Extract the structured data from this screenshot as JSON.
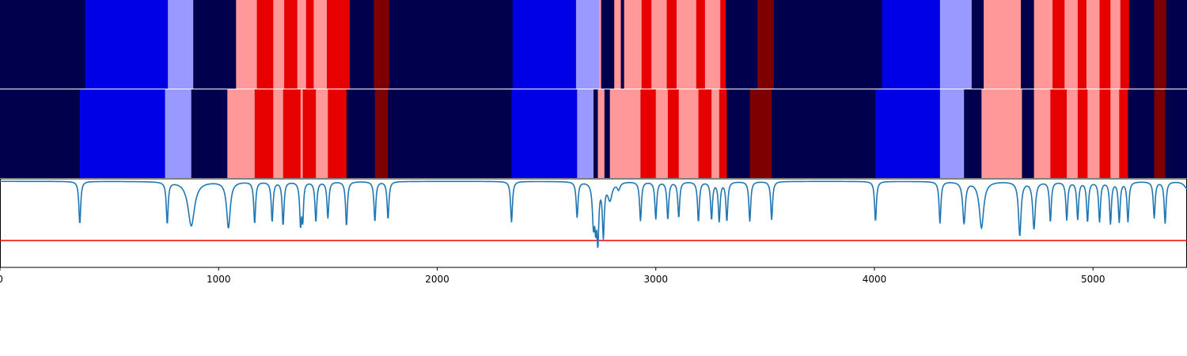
{
  "chart_data": {
    "type": "heatmap",
    "title": "",
    "xlabel": "",
    "xlim": [
      0,
      5430
    ],
    "x_ticks": [
      {
        "value": 0,
        "label": "0"
      },
      {
        "value": 1000,
        "label": "1000"
      },
      {
        "value": 2000,
        "label": "2000"
      },
      {
        "value": 3000,
        "label": "3000"
      },
      {
        "value": 4000,
        "label": "4000"
      },
      {
        "value": 5000,
        "label": "5000"
      }
    ],
    "state_colors": {
      "0": "#00004c",
      "1": "#0000e6",
      "2": "#9999ff",
      "3": "#ff9999",
      "4": "#e60000",
      "5": "#7f0000"
    },
    "bands": [
      {
        "segments": [
          [
            0,
            390,
            0
          ],
          [
            390,
            768,
            1
          ],
          [
            768,
            884,
            2
          ],
          [
            884,
            1080,
            0
          ],
          [
            1080,
            1175,
            3
          ],
          [
            1175,
            1250,
            4
          ],
          [
            1250,
            1300,
            3
          ],
          [
            1300,
            1360,
            4
          ],
          [
            1360,
            1400,
            3
          ],
          [
            1400,
            1435,
            4
          ],
          [
            1435,
            1495,
            3
          ],
          [
            1495,
            1600,
            4
          ],
          [
            1600,
            1710,
            0
          ],
          [
            1710,
            1780,
            5
          ],
          [
            1780,
            2345,
            0
          ],
          [
            2345,
            2635,
            1
          ],
          [
            2635,
            2740,
            2
          ],
          [
            2740,
            2750,
            3
          ],
          [
            2750,
            2760,
            0
          ],
          [
            2760,
            2810,
            0
          ],
          [
            2810,
            2840,
            3
          ],
          [
            2840,
            2845,
            0
          ],
          [
            2845,
            2855,
            0
          ],
          [
            2855,
            2935,
            3
          ],
          [
            2935,
            2980,
            4
          ],
          [
            2980,
            3050,
            3
          ],
          [
            3050,
            3095,
            4
          ],
          [
            3095,
            3185,
            3
          ],
          [
            3185,
            3225,
            4
          ],
          [
            3225,
            3295,
            3
          ],
          [
            3295,
            3320,
            4
          ],
          [
            3320,
            3465,
            0
          ],
          [
            3465,
            3540,
            5
          ],
          [
            3540,
            4035,
            0
          ],
          [
            4035,
            4300,
            1
          ],
          [
            4300,
            4445,
            2
          ],
          [
            4445,
            4500,
            0
          ],
          [
            4500,
            4670,
            3
          ],
          [
            4670,
            4730,
            0
          ],
          [
            4730,
            4815,
            3
          ],
          [
            4815,
            4870,
            4
          ],
          [
            4870,
            4930,
            3
          ],
          [
            4930,
            4970,
            4
          ],
          [
            4970,
            5030,
            3
          ],
          [
            5030,
            5080,
            4
          ],
          [
            5080,
            5125,
            3
          ],
          [
            5125,
            5165,
            4
          ],
          [
            5165,
            5280,
            0
          ],
          [
            5280,
            5335,
            5
          ],
          [
            5335,
            5430,
            0
          ]
        ]
      },
      {
        "segments": [
          [
            0,
            365,
            0
          ],
          [
            365,
            755,
            1
          ],
          [
            755,
            875,
            2
          ],
          [
            875,
            1040,
            0
          ],
          [
            1040,
            1165,
            3
          ],
          [
            1165,
            1250,
            4
          ],
          [
            1250,
            1295,
            3
          ],
          [
            1295,
            1375,
            4
          ],
          [
            1375,
            1385,
            3
          ],
          [
            1385,
            1445,
            4
          ],
          [
            1445,
            1500,
            3
          ],
          [
            1500,
            1585,
            4
          ],
          [
            1585,
            1715,
            0
          ],
          [
            1715,
            1775,
            5
          ],
          [
            1775,
            2340,
            0
          ],
          [
            2340,
            2640,
            1
          ],
          [
            2640,
            2715,
            2
          ],
          [
            2715,
            2735,
            0
          ],
          [
            2735,
            2765,
            3
          ],
          [
            2765,
            2790,
            0
          ],
          [
            2790,
            2930,
            3
          ],
          [
            2930,
            3000,
            4
          ],
          [
            3000,
            3055,
            3
          ],
          [
            3055,
            3105,
            4
          ],
          [
            3105,
            3195,
            3
          ],
          [
            3195,
            3255,
            4
          ],
          [
            3255,
            3290,
            3
          ],
          [
            3290,
            3325,
            4
          ],
          [
            3325,
            3430,
            0
          ],
          [
            3430,
            3530,
            5
          ],
          [
            3530,
            4005,
            0
          ],
          [
            4005,
            4300,
            1
          ],
          [
            4300,
            4410,
            2
          ],
          [
            4410,
            4490,
            0
          ],
          [
            4490,
            4675,
            3
          ],
          [
            4675,
            4730,
            0
          ],
          [
            4730,
            4805,
            3
          ],
          [
            4805,
            4880,
            4
          ],
          [
            4880,
            4930,
            3
          ],
          [
            4930,
            4975,
            4
          ],
          [
            4975,
            5030,
            3
          ],
          [
            5030,
            5080,
            4
          ],
          [
            5080,
            5120,
            3
          ],
          [
            5120,
            5160,
            4
          ],
          [
            5160,
            5280,
            0
          ],
          [
            5280,
            5330,
            5
          ],
          [
            5330,
            5430,
            0
          ]
        ]
      }
    ],
    "line_series": {
      "color": "#1f77b4",
      "ylim": [
        0,
        1
      ],
      "baseline": 0.98,
      "dips": [
        [
          365,
          0.49,
          5
        ],
        [
          765,
          0.5,
          5
        ],
        [
          875,
          0.47,
          18
        ],
        [
          1045,
          0.45,
          10
        ],
        [
          1165,
          0.5,
          5
        ],
        [
          1245,
          0.52,
          5
        ],
        [
          1295,
          0.48,
          5
        ],
        [
          1375,
          0.5,
          5
        ],
        [
          1385,
          0.58,
          4
        ],
        [
          1445,
          0.52,
          5
        ],
        [
          1500,
          0.56,
          5
        ],
        [
          1585,
          0.47,
          5
        ],
        [
          1715,
          0.52,
          5
        ],
        [
          1775,
          0.55,
          5
        ],
        [
          2340,
          0.51,
          5
        ],
        [
          2640,
          0.57,
          5
        ],
        [
          2715,
          0.5,
          6
        ],
        [
          2725,
          0.6,
          4
        ],
        [
          2735,
          0.33,
          5
        ],
        [
          2760,
          0.38,
          5
        ],
        [
          2790,
          0.78,
          12
        ],
        [
          2830,
          0.9,
          8
        ],
        [
          2930,
          0.53,
          5
        ],
        [
          3000,
          0.55,
          5
        ],
        [
          3055,
          0.55,
          5
        ],
        [
          3105,
          0.57,
          5
        ],
        [
          3195,
          0.52,
          5
        ],
        [
          3255,
          0.55,
          5
        ],
        [
          3290,
          0.53,
          5
        ],
        [
          3325,
          0.53,
          5
        ],
        [
          3430,
          0.52,
          5
        ],
        [
          3530,
          0.54,
          5
        ],
        [
          4005,
          0.52,
          5
        ],
        [
          4300,
          0.5,
          5
        ],
        [
          4410,
          0.5,
          7
        ],
        [
          4490,
          0.45,
          12
        ],
        [
          4665,
          0.36,
          7
        ],
        [
          4730,
          0.44,
          7
        ],
        [
          4805,
          0.52,
          5
        ],
        [
          4880,
          0.54,
          5
        ],
        [
          4930,
          0.55,
          5
        ],
        [
          4975,
          0.52,
          5
        ],
        [
          5030,
          0.52,
          5
        ],
        [
          5080,
          0.5,
          5
        ],
        [
          5120,
          0.52,
          5
        ],
        [
          5160,
          0.52,
          5
        ],
        [
          5280,
          0.56,
          5
        ],
        [
          5330,
          0.5,
          5
        ],
        [
          5430,
          0.9,
          15
        ]
      ]
    },
    "threshold": {
      "value": 0.3,
      "color": "#ee0000"
    }
  }
}
